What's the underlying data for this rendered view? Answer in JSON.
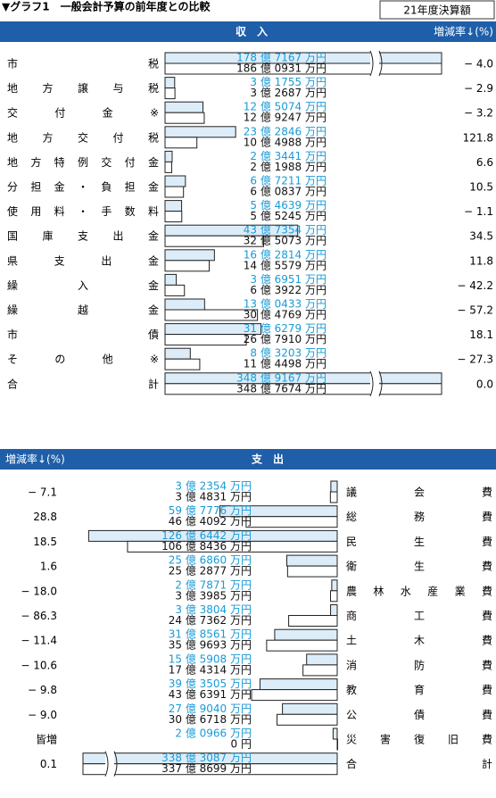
{
  "title": "▼グラフ1　一般会計予算の前年度との比較",
  "legend_box": "21年度決算額",
  "income": {
    "header": "収　入",
    "rate_header": "増減率↓(%)",
    "items": [
      "市税",
      "地方譲与税",
      "交付金※",
      "地方交付税",
      "地方特例交付金",
      "分担金・負担金",
      "使用料・手数料",
      "国庫支出金",
      "県支出金",
      "繰入金",
      "繰越金",
      "市債",
      "その他※",
      "合計"
    ],
    "current": {
      "values": [
        1787167,
        31755,
        125074,
        232846,
        23441,
        67211,
        54639,
        437354,
        162814,
        36951,
        130433,
        316279,
        83203,
        3489167
      ],
      "value_labels": [
        "178 億 7167 万円",
        "3 億 1755 万円",
        "12 億 5074 万円",
        "23 億 2846 万円",
        "2 億 3441 万円",
        "6 億 7211 万円",
        "5 億 4639 万円",
        "43 億 7354 万円",
        "16 億 2814 万円",
        "3 億 6951 万円",
        "13 億 0433 万円",
        "31 億 6279 万円",
        "8 億 3203 万円",
        "348 億 9167 万円"
      ]
    },
    "previous": {
      "values": [
        1860931,
        32687,
        129247,
        104988,
        21988,
        60837,
        55245,
        325073,
        145579,
        63922,
        304769,
        267910,
        114498,
        3487674
      ],
      "value_labels": [
        "186 億 0931 万円",
        "3 億 2687 万円",
        "12 億 9247 万円",
        "10 億 4988 万円",
        "2 億 1988 万円",
        "6 億 0837 万円",
        "5 億 5245 万円",
        "32 億 5073 万円",
        "14 億 5579 万円",
        "6 億 3922 万円",
        "30 億 4769 万円",
        "26 億 7910 万円",
        "11 億 4498 万円",
        "348 億 7674 万円"
      ]
    },
    "rates": [
      "− 4.0",
      "− 2.9",
      "− 3.2",
      "121.8",
      "6.6",
      "10.5",
      "− 1.1",
      "34.5",
      "11.8",
      "− 42.2",
      "− 57.2",
      "18.1",
      "− 27.3",
      "0.0"
    ]
  },
  "expenditure": {
    "header": "支　出",
    "rate_header": "増減率↓(%)",
    "items": [
      "議会費",
      "総務費",
      "民生費",
      "衛生費",
      "農林水産業費",
      "商工費",
      "土木費",
      "消防費",
      "教育費",
      "公債費",
      "災害復旧費",
      "合計"
    ],
    "current": {
      "values": [
        32354,
        597776,
        1266442,
        256860,
        27871,
        33804,
        318561,
        155908,
        393505,
        279040,
        20966,
        3383087
      ],
      "value_labels": [
        "3 億 2354 万円",
        "59 億 7776 万円",
        "126 億 6442 万円",
        "25 億 6860 万円",
        "2 億 7871 万円",
        "3 億 3804 万円",
        "31 億 8561 万円",
        "15 億 5908 万円",
        "39 億 3505 万円",
        "27 億 9040 万円",
        "2 億 0966 万円",
        "338 億 3087 万円"
      ]
    },
    "previous": {
      "values": [
        34831,
        464092,
        1068436,
        252877,
        33985,
        247362,
        359693,
        174314,
        436391,
        306718,
        0,
        3378699
      ],
      "value_labels": [
        "3 億 4831 万円",
        "46 億 4092 万円",
        "106 億 8436 万円",
        "25 億 2877 万円",
        "3 億 3985 万円",
        "24 億 7362 万円",
        "35 億 9693 万円",
        "17 億 4314 万円",
        "43 億 6391 万円",
        "30 億 6718 万円",
        "0 円",
        "337 億 8699 万円"
      ]
    },
    "rates": [
      "− 7.1",
      "28.8",
      "18.5",
      "1.6",
      "− 18.0",
      "− 86.3",
      "− 11.4",
      "− 10.6",
      "− 9.8",
      "− 9.0",
      "皆増",
      "0.1"
    ]
  }
}
